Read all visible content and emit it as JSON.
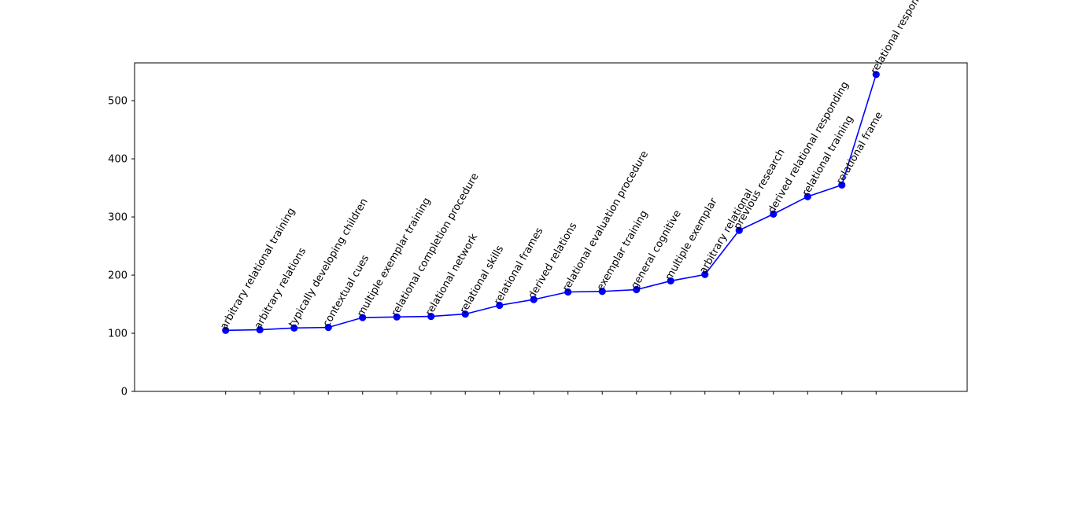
{
  "chart_data": {
    "type": "line",
    "title": "",
    "xlabel": "",
    "ylabel": "",
    "ylim": [
      0,
      565
    ],
    "yticks": [
      0,
      100,
      200,
      300,
      400,
      500
    ],
    "grid": false,
    "legend": "none",
    "line_color": "#0000ff",
    "marker_color": "#0000ff",
    "x": [
      1,
      2,
      3,
      4,
      5,
      6,
      7,
      8,
      9,
      10,
      11,
      12,
      13,
      14,
      15,
      16,
      17,
      18,
      19,
      20
    ],
    "xlim": [
      -1.66,
      22.66
    ],
    "series": [
      {
        "name": "",
        "values": [
          105,
          106,
          109,
          110,
          127,
          128,
          129,
          133,
          148,
          158,
          171,
          172,
          175,
          190,
          201,
          277,
          305,
          335,
          355,
          545
        ],
        "point_labels": [
          "arbitrary relational training",
          "arbitrary relations",
          "typically developing children",
          "contextual cues",
          "multiple exemplar training",
          "relational completion procedure",
          "relational network",
          "relational skills",
          "relational frames",
          "derived relations",
          "relational evaluation procedure",
          "exemplar training",
          "general cognitive",
          "multiple exemplar",
          "arbitrary relational",
          "previous research",
          "derived relational responding",
          "relational training",
          "relational frame",
          "relational responding"
        ]
      }
    ]
  }
}
